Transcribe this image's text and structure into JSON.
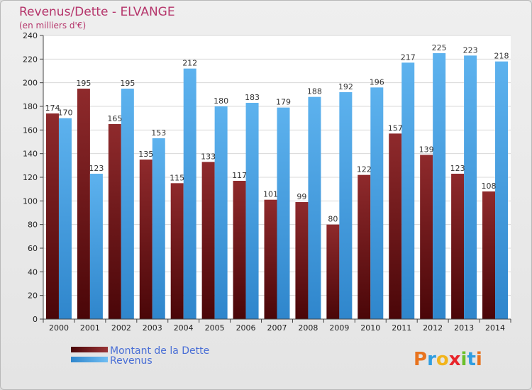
{
  "chart_data": {
    "type": "bar",
    "title": "Revenus/Dette - ELVANGE",
    "subtitle": "(en milliers d'€)",
    "categories": [
      "2000",
      "2001",
      "2002",
      "2003",
      "2004",
      "2005",
      "2006",
      "2007",
      "2008",
      "2009",
      "2010",
      "2011",
      "2012",
      "2013",
      "2014"
    ],
    "series": [
      {
        "name": "Montant de la Dette",
        "color": "#7a1416",
        "values": [
          174,
          195,
          165,
          135,
          115,
          133,
          117,
          101,
          99,
          80,
          122,
          157,
          139,
          123,
          108
        ]
      },
      {
        "name": "Revenus",
        "color": "#4aa3e3",
        "values": [
          170,
          123,
          195,
          153,
          212,
          180,
          183,
          179,
          188,
          192,
          196,
          217,
          225,
          223,
          218
        ]
      }
    ],
    "ylim": [
      0,
      240
    ],
    "yticks": [
      0,
      20,
      40,
      60,
      80,
      100,
      120,
      140,
      160,
      180,
      200,
      220,
      240
    ],
    "grid": true,
    "legend_position": "bottom-left"
  },
  "brand": {
    "logo_text": "Proxiti"
  }
}
